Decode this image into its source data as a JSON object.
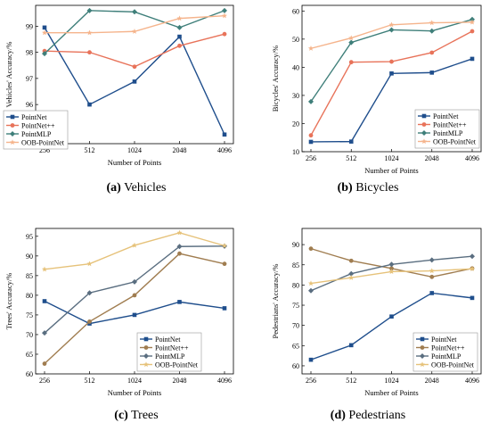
{
  "chart_data": [
    {
      "type": "line",
      "caption_letter": "(a)",
      "caption_text": "Vehicles",
      "xlabel": "Number of Points",
      "ylabel": "Vehicles' Accuracy/%",
      "categories": [
        "256",
        "512",
        "1024",
        "2048",
        "4096"
      ],
      "ylim": [
        94.5,
        99.8
      ],
      "yticks": [
        95,
        96,
        97,
        98,
        99
      ],
      "legend_position": "bottom-left",
      "series": [
        {
          "name": "PointNet",
          "color": "#1f4e8c",
          "marker": "square",
          "values": [
            98.95,
            96.0,
            96.88,
            98.6,
            94.85
          ]
        },
        {
          "name": "PointNet++",
          "color": "#e8735a",
          "marker": "circle",
          "values": [
            98.05,
            98.0,
            97.45,
            98.25,
            98.7
          ]
        },
        {
          "name": "PointMLP",
          "color": "#3f7f7a",
          "marker": "diamond",
          "values": [
            97.95,
            99.6,
            99.55,
            98.95,
            99.6
          ]
        },
        {
          "name": "OOB-PointNet",
          "color": "#f5b48c",
          "marker": "star",
          "values": [
            98.75,
            98.75,
            98.8,
            99.3,
            99.4
          ]
        }
      ]
    },
    {
      "type": "line",
      "caption_letter": "(b)",
      "caption_text": "Bicycles",
      "xlabel": "Number of Points",
      "ylabel": "Bicycles' Accuracy/%",
      "categories": [
        "256",
        "512",
        "1024",
        "2048",
        "4096"
      ],
      "ylim": [
        10,
        62
      ],
      "yticks": [
        10,
        20,
        30,
        40,
        50,
        60
      ],
      "legend_position": "bottom-right",
      "series": [
        {
          "name": "PointNet",
          "color": "#1f4e8c",
          "marker": "square",
          "values": [
            13.5,
            13.6,
            37.8,
            38.1,
            43.0
          ]
        },
        {
          "name": "PointNet++",
          "color": "#e8735a",
          "marker": "circle",
          "values": [
            15.8,
            41.8,
            42.0,
            45.2,
            52.8
          ]
        },
        {
          "name": "PointMLP",
          "color": "#3f7f7a",
          "marker": "diamond",
          "values": [
            27.8,
            48.8,
            53.3,
            52.9,
            57.0
          ]
        },
        {
          "name": "OOB-PointNet",
          "color": "#f5b48c",
          "marker": "star",
          "values": [
            46.7,
            50.4,
            55.1,
            55.8,
            56.0
          ]
        }
      ]
    },
    {
      "type": "line",
      "caption_letter": "(c)",
      "caption_text": "Trees",
      "xlabel": "Number of Points",
      "ylabel": "Trees' Accuracy/%",
      "categories": [
        "256",
        "512",
        "1024",
        "2048",
        "4096"
      ],
      "ylim": [
        60,
        97
      ],
      "yticks": [
        60,
        65,
        70,
        75,
        80,
        85,
        90,
        95
      ],
      "legend_position": "bottom-right",
      "series": [
        {
          "name": "PointNet",
          "color": "#1f4e8c",
          "marker": "square",
          "values": [
            78.5,
            72.8,
            75.0,
            78.3,
            76.7
          ]
        },
        {
          "name": "PointNet++",
          "color": "#a07d50",
          "marker": "circle",
          "values": [
            62.6,
            73.3,
            80.0,
            90.6,
            88.0
          ]
        },
        {
          "name": "PointMLP",
          "color": "#5a6e80",
          "marker": "diamond",
          "values": [
            70.4,
            80.6,
            83.4,
            92.4,
            92.5
          ]
        },
        {
          "name": "OOB-PointNet",
          "color": "#e6c27a",
          "marker": "star",
          "values": [
            86.6,
            88.0,
            92.7,
            95.9,
            92.6
          ]
        }
      ]
    },
    {
      "type": "line",
      "caption_letter": "(d)",
      "caption_text": "Pedestrians",
      "xlabel": "Number of Points",
      "ylabel": "Pedestrians' Accuracy/%",
      "categories": [
        "256",
        "512",
        "1024",
        "2048",
        "4096"
      ],
      "ylim": [
        58,
        94
      ],
      "yticks": [
        60,
        65,
        70,
        75,
        80,
        85,
        90
      ],
      "legend_position": "bottom-right",
      "series": [
        {
          "name": "PointNet",
          "color": "#1f4e8c",
          "marker": "square",
          "values": [
            61.5,
            65.1,
            72.2,
            78.0,
            76.8
          ]
        },
        {
          "name": "PointNet++",
          "color": "#a07d50",
          "marker": "circle",
          "values": [
            89.0,
            86.0,
            84.1,
            82.0,
            84.1
          ]
        },
        {
          "name": "PointMLP",
          "color": "#5a6e80",
          "marker": "diamond",
          "values": [
            78.6,
            82.8,
            85.1,
            86.2,
            87.1
          ]
        },
        {
          "name": "OOB-PointNet",
          "color": "#e6c27a",
          "marker": "star",
          "values": [
            80.4,
            81.8,
            83.3,
            83.5,
            84.0
          ]
        }
      ]
    }
  ]
}
